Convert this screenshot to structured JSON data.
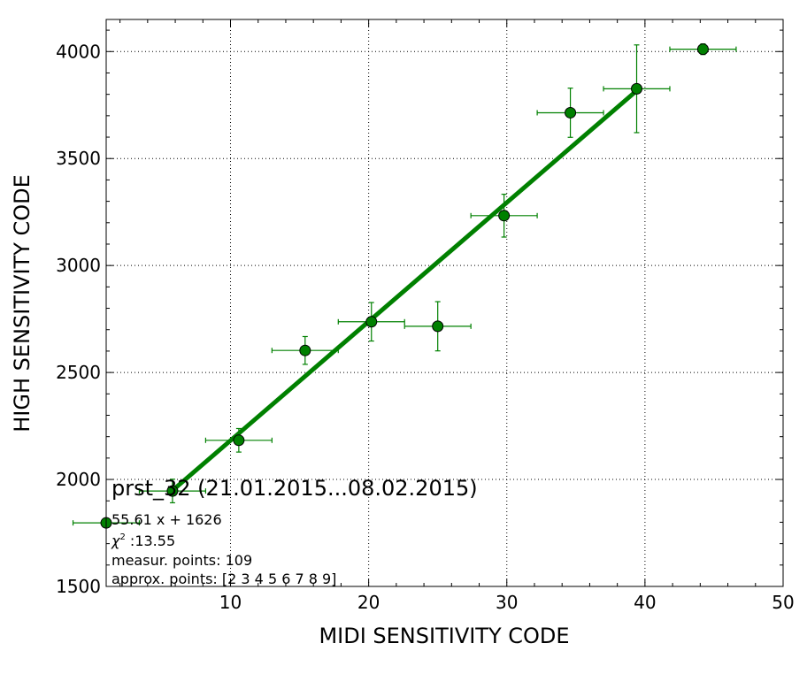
{
  "chart_data": {
    "type": "scatter",
    "xlabel": "MIDI SENSITIVITY CODE",
    "ylabel": "HIGH SENSITIVITY CODE",
    "xlim": [
      1,
      50
    ],
    "ylim": [
      1500,
      4150
    ],
    "x_ticks": [
      10,
      20,
      30,
      40,
      50
    ],
    "y_ticks": [
      1500,
      2000,
      2500,
      3000,
      3500,
      4000
    ],
    "grid": true,
    "colors": {
      "series": "#008000",
      "marker": "#008000",
      "fit_line": "#008000",
      "error": "#008000"
    },
    "series": [
      {
        "points": [
          {
            "x": 1.0,
            "y": 1797,
            "xerr": 2.4,
            "yerr": 0
          },
          {
            "x": 5.8,
            "y": 1946,
            "xerr": 2.4,
            "yerr": 55
          },
          {
            "x": 10.6,
            "y": 2183,
            "xerr": 2.4,
            "yerr": 55
          },
          {
            "x": 15.4,
            "y": 2603,
            "xerr": 2.4,
            "yerr": 65
          },
          {
            "x": 20.2,
            "y": 2737,
            "xerr": 2.4,
            "yerr": 90
          },
          {
            "x": 25.0,
            "y": 2716,
            "xerr": 2.4,
            "yerr": 115
          },
          {
            "x": 29.8,
            "y": 3233,
            "xerr": 2.4,
            "yerr": 100
          },
          {
            "x": 34.6,
            "y": 3714,
            "xerr": 2.4,
            "yerr": 115
          },
          {
            "x": 39.4,
            "y": 3826,
            "xerr": 2.4,
            "yerr": 205
          },
          {
            "x": 44.2,
            "y": 4011,
            "xerr": 2.4,
            "yerr": 25
          }
        ]
      }
    ],
    "fit": {
      "slope": 55.61,
      "intercept": 1626,
      "x_range": [
        5.8,
        39.4
      ]
    },
    "annotation": {
      "title": "prst_32 (21.01.2015...08.02.2015)",
      "equation": "55.61 x + 1626",
      "chi2_symbol": "χ",
      "chi2_sup": "2",
      "chi2_value": " :13.55",
      "measur_points": "measur. points: 109",
      "approx_points": "approx. points: [2 3 4 5 6 7 8 9]"
    }
  }
}
